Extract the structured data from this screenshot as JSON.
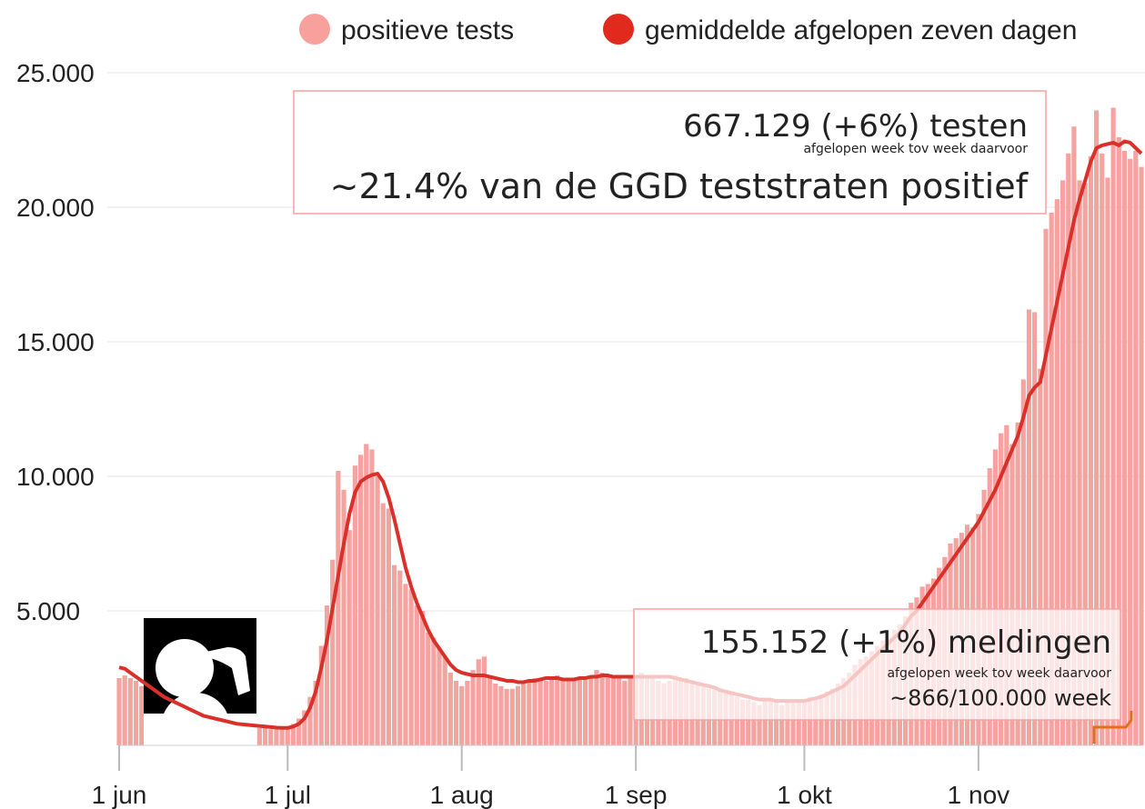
{
  "chart_data": {
    "type": "bar",
    "categories": [
      "1 jun",
      null,
      null,
      null,
      null,
      null,
      null,
      null,
      null,
      null,
      null,
      null,
      null,
      null,
      null,
      null,
      null,
      null,
      null,
      null,
      null,
      null,
      null,
      null,
      null,
      null,
      null,
      null,
      null,
      null,
      "1 jul",
      null,
      null,
      null,
      null,
      null,
      null,
      null,
      null,
      null,
      null,
      null,
      null,
      null,
      null,
      null,
      null,
      null,
      null,
      null,
      null,
      null,
      null,
      null,
      null,
      null,
      null,
      null,
      null,
      null,
      null,
      "1 aug",
      null,
      null,
      null,
      null,
      null,
      null,
      null,
      null,
      null,
      null,
      null,
      null,
      null,
      null,
      null,
      null,
      null,
      null,
      null,
      null,
      null,
      null,
      null,
      null,
      null,
      null,
      null,
      null,
      null,
      null,
      "1 sep",
      null,
      null,
      null,
      null,
      null,
      null,
      null,
      null,
      null,
      null,
      null,
      null,
      null,
      null,
      null,
      null,
      null,
      null,
      null,
      null,
      null,
      null,
      null,
      null,
      null,
      null,
      null,
      null,
      null,
      "1 okt",
      null,
      null,
      null,
      null,
      null,
      null,
      null,
      null,
      null,
      null,
      null,
      null,
      null,
      null,
      null,
      null,
      null,
      null,
      null,
      null,
      null,
      null,
      null,
      null,
      null,
      null,
      null,
      null,
      null,
      null,
      "1 nov",
      null,
      null,
      null,
      null,
      null,
      null,
      null,
      null,
      null,
      null,
      null,
      null,
      null,
      null,
      null,
      null,
      null,
      null,
      null,
      null,
      null,
      null,
      null,
      null,
      null,
      null,
      null,
      null,
      null
    ],
    "series": [
      {
        "name": "positieve tests",
        "type": "bar",
        "color": "#f5a3a1",
        "values": [
          2500,
          2600,
          2500,
          2400,
          2200,
          2000,
          1900,
          1800,
          1700,
          1600,
          1500,
          1400,
          1300,
          1200,
          1100,
          1000,
          1000,
          950,
          900,
          850,
          800,
          800,
          750,
          700,
          700,
          650,
          650,
          600,
          600,
          600,
          700,
          800,
          1000,
          1300,
          1800,
          2400,
          3700,
          5200,
          6900,
          10200,
          9500,
          8000,
          10400,
          10800,
          11200,
          11000,
          10000,
          9000,
          8800,
          6700,
          6500,
          6000,
          5800,
          5200,
          5000,
          4200,
          4000,
          3600,
          3300,
          2700,
          2400,
          2200,
          2400,
          2800,
          3200,
          3300,
          2600,
          2300,
          2200,
          2100,
          2100,
          2200,
          2300,
          2400,
          2500,
          2400,
          2400,
          2500,
          2600,
          2400,
          2400,
          2400,
          2500,
          2500,
          2600,
          2800,
          2700,
          2600,
          2500,
          2500,
          2400,
          2600,
          2600,
          2700,
          2500,
          2500,
          2400,
          2300,
          2400,
          2600,
          2500,
          2500,
          2400,
          2300,
          2200,
          2100,
          2200,
          2100,
          2000,
          1900,
          1800,
          1700,
          1700,
          1600,
          1500,
          1700,
          1700,
          1600,
          1500,
          1600,
          1700,
          1700,
          1700,
          1800,
          1800,
          1900,
          2000,
          2100,
          2300,
          2500,
          2700,
          3000,
          3200,
          3300,
          3500,
          3700,
          3900,
          4000,
          4300,
          4500,
          4800,
          5300,
          5500,
          5900,
          6000,
          6200,
          6600,
          7000,
          7500,
          7700,
          7900,
          8200,
          8100,
          8600,
          9500,
          10300,
          11000,
          11600,
          11900,
          11200,
          12000,
          13600,
          16200,
          16100,
          14000,
          19200,
          19800,
          20300,
          21000,
          22000,
          23000,
          21000,
          20900,
          21900,
          23600,
          22000,
          21100,
          23700,
          22600,
          22100,
          21800,
          22100,
          21500
        ]
      },
      {
        "name": "gemiddelde afgelopen zeven dagen",
        "type": "line",
        "color": "#d9302a",
        "values": [
          2900,
          2850,
          2700,
          2550,
          2400,
          2250,
          2100,
          1950,
          1800,
          1700,
          1600,
          1500,
          1400,
          1300,
          1200,
          1100,
          1050,
          1000,
          950,
          900,
          850,
          800,
          780,
          760,
          740,
          720,
          700,
          680,
          660,
          650,
          650,
          700,
          800,
          1000,
          1400,
          2000,
          2900,
          3900,
          5100,
          6300,
          7500,
          8600,
          9400,
          9800,
          9950,
          10050,
          10100,
          9800,
          9200,
          8400,
          7500,
          6600,
          5900,
          5300,
          4800,
          4300,
          3900,
          3600,
          3300,
          3000,
          2800,
          2700,
          2650,
          2600,
          2600,
          2600,
          2550,
          2500,
          2450,
          2400,
          2400,
          2350,
          2350,
          2400,
          2400,
          2450,
          2500,
          2500,
          2500,
          2450,
          2450,
          2450,
          2500,
          2500,
          2550,
          2550,
          2600,
          2600,
          2550,
          2550,
          2550,
          2550,
          2550,
          2550,
          2550,
          2550,
          2550,
          2550,
          2550,
          2500,
          2450,
          2400,
          2350,
          2300,
          2250,
          2200,
          2150,
          2050,
          2000,
          1950,
          1900,
          1850,
          1800,
          1750,
          1700,
          1700,
          1700,
          1650,
          1650,
          1650,
          1650,
          1650,
          1650,
          1700,
          1750,
          1800,
          1900,
          2000,
          2100,
          2200,
          2400,
          2600,
          2800,
          3000,
          3200,
          3400,
          3600,
          3800,
          4000,
          4200,
          4500,
          4800,
          5000,
          5300,
          5600,
          5900,
          6200,
          6500,
          6800,
          7100,
          7400,
          7700,
          8000,
          8300,
          8700,
          9100,
          9500,
          10000,
          10500,
          11000,
          11500,
          12200,
          13000,
          13300,
          13500,
          14500,
          15500,
          16500,
          17500,
          18500,
          19500,
          20300,
          21000,
          21700,
          22200,
          22300,
          22350,
          22400,
          22300,
          22450,
          22400,
          22200,
          22000
        ]
      }
    ],
    "ylim": [
      0,
      25000
    ],
    "yticks": [
      {
        "value": 5000,
        "label": "5.000"
      },
      {
        "value": 10000,
        "label": "10.000"
      },
      {
        "value": 15000,
        "label": "15.000"
      },
      {
        "value": 20000,
        "label": "20.000"
      },
      {
        "value": 25000,
        "label": "25.000"
      }
    ],
    "grid": true,
    "legend": "top",
    "annotations": [
      {
        "lines": [
          "667.129 (+6%) testen",
          "afgelopen week tov week daarvoor",
          "~21.4% van de GGD teststraten positief"
        ]
      },
      {
        "lines": [
          "155.152 (+1%) meldingen",
          "afgelopen week tov week daarvoor",
          "~866/100.000 week"
        ]
      }
    ]
  }
}
